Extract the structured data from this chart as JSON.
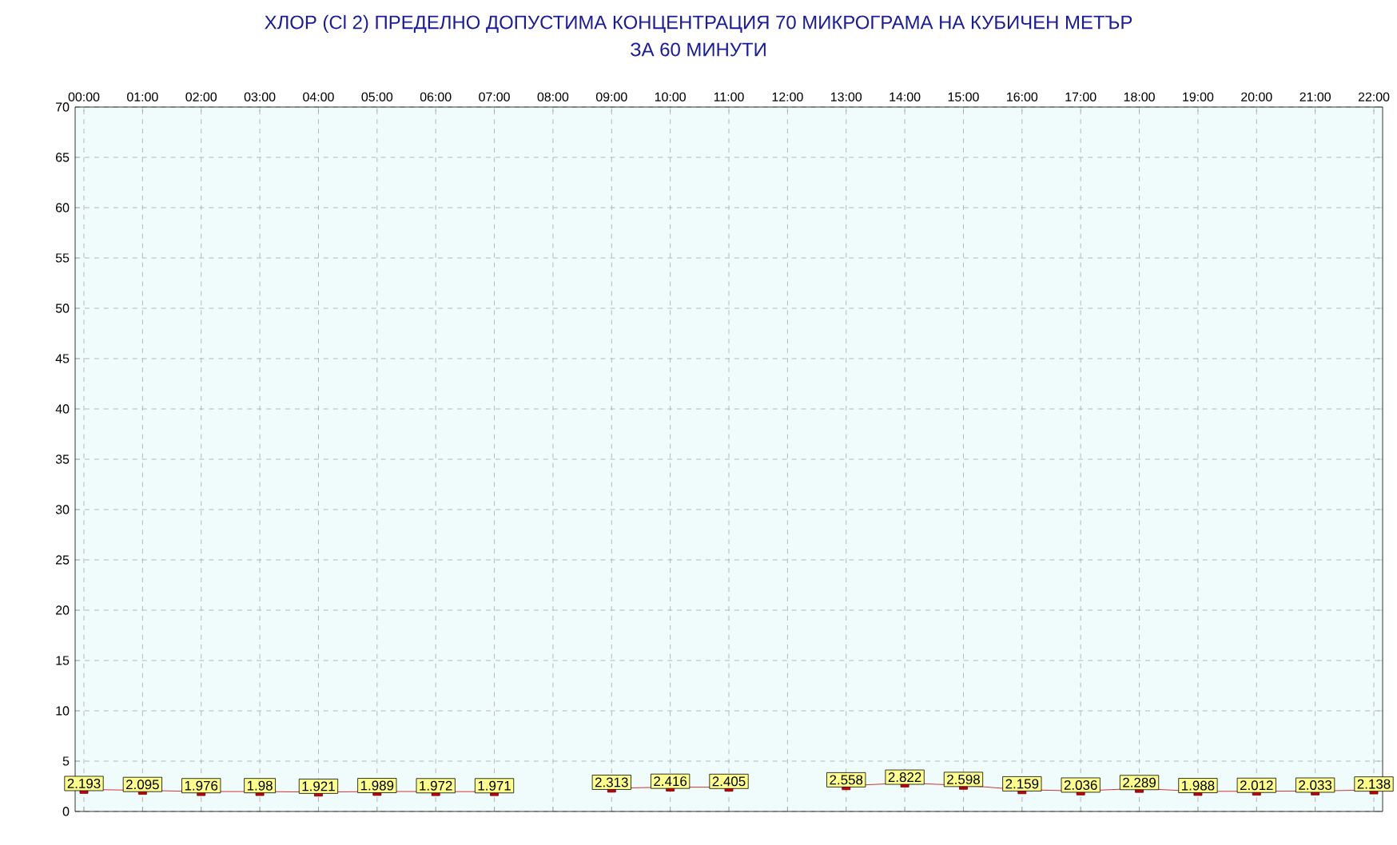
{
  "chart_data": {
    "type": "line",
    "title": "ХЛОР  (Cl 2)    ПРЕДЕЛНО ДОПУСТИМА КОНЦЕНТРАЦИЯ 70 МИКРОГРАМА  НА КУБИЧЕН МЕТЪР",
    "subtitle": "ЗА 60 МИНУТИ",
    "categories": [
      "00:00",
      "01:00",
      "02:00",
      "03:00",
      "04:00",
      "05:00",
      "06:00",
      "07:00",
      "08:00",
      "09:00",
      "10:00",
      "11:00",
      "12:00",
      "13:00",
      "14:00",
      "15:00",
      "16:00",
      "17:00",
      "18:00",
      "19:00",
      "20:00",
      "21:00",
      "22:00"
    ],
    "series": [
      {
        "color": "#cc0000",
        "values": [
          2.193,
          2.095,
          1.976,
          1.98,
          1.921,
          1.989,
          1.972,
          1.971,
          null,
          2.313,
          2.416,
          2.405,
          null,
          2.558,
          2.822,
          2.598,
          2.159,
          2.036,
          2.289,
          1.988,
          2.012,
          2.033,
          2.138
        ]
      }
    ],
    "ylim": [
      0,
      70
    ],
    "yticks": [
      0,
      5,
      10,
      15,
      20,
      25,
      30,
      35,
      40,
      45,
      50,
      55,
      60,
      65,
      70
    ],
    "grid": true,
    "marker": "square",
    "data_labels": true
  }
}
